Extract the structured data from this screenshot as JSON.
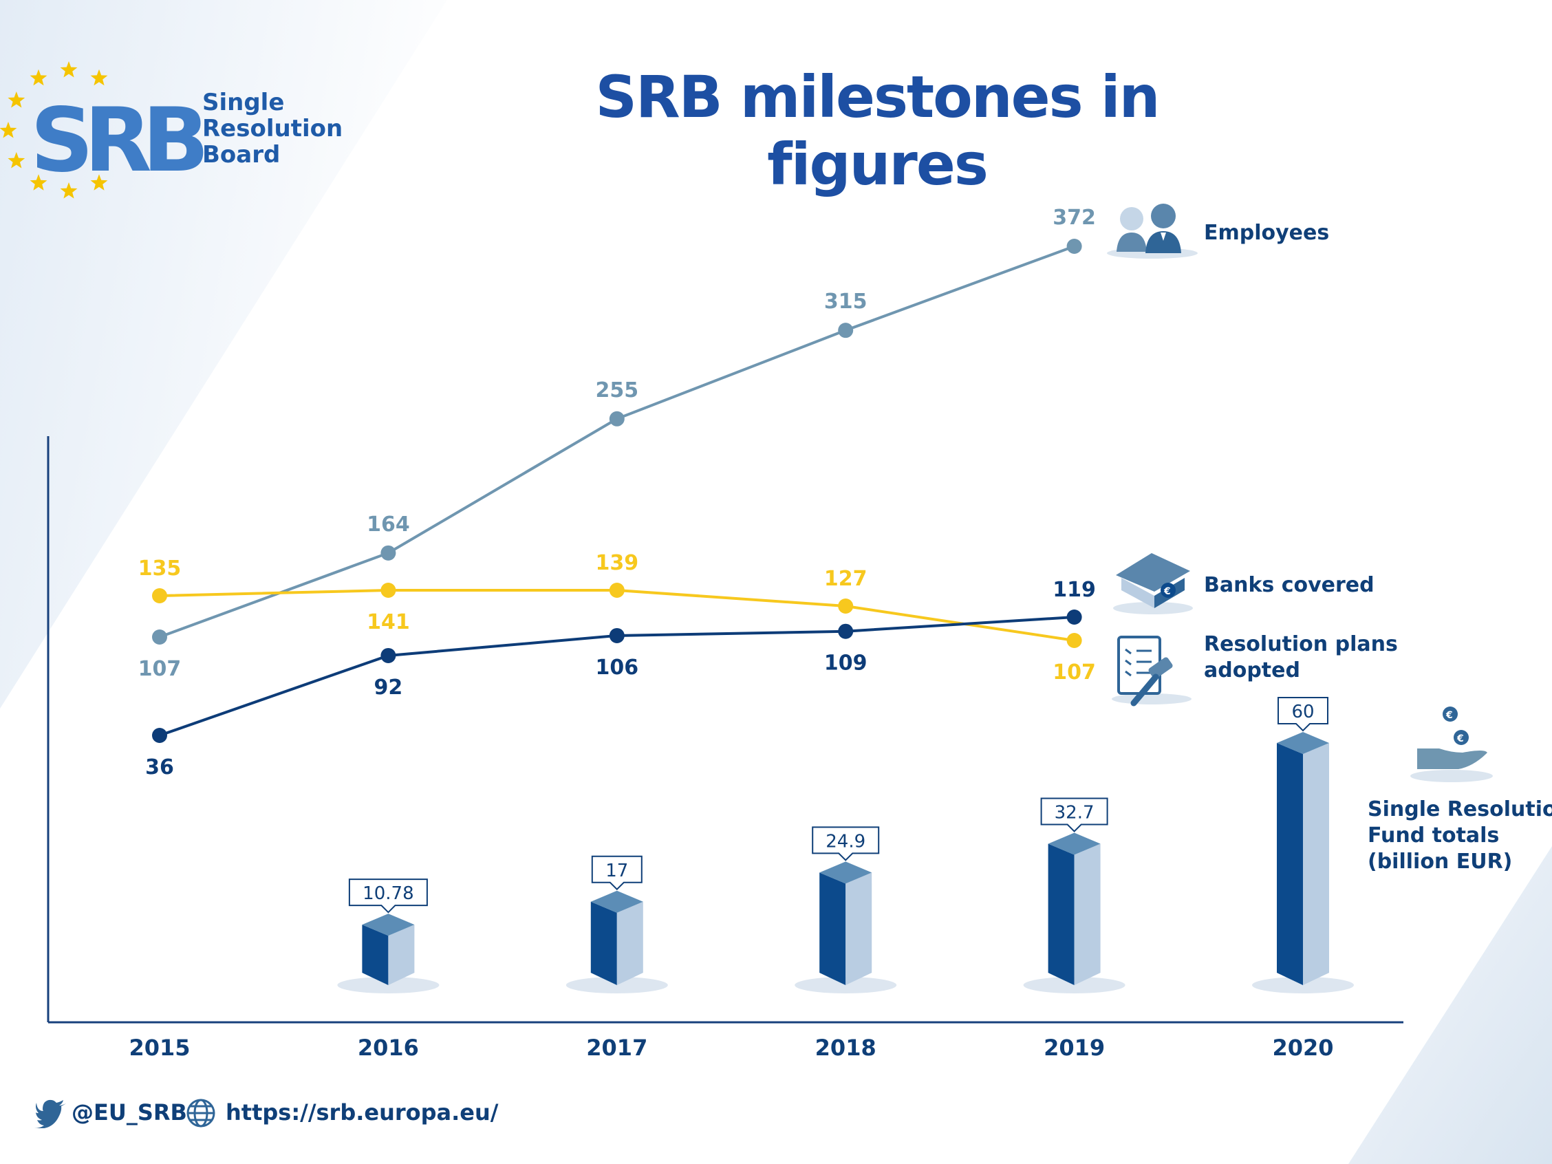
{
  "title": "SRB milestones in figures",
  "logo": {
    "letters": "SRB",
    "line1": "Single",
    "line2": "Resolution",
    "line3": "Board"
  },
  "footer": {
    "twitter": "@EU_SRB",
    "website": "https://srb.europa.eu/"
  },
  "legend": {
    "employees": "Employees",
    "banks_covered": "Banks covered",
    "resolution_line1": "Resolution plans",
    "resolution_line2": "adopted",
    "fund_line1": "Single Resolution",
    "fund_line2": "Fund totals",
    "fund_line3": "(billion EUR)"
  },
  "colors": {
    "employees": "#6f96b0",
    "banks_covered": "#0d3c78",
    "resolution_plans": "#f7c81e",
    "bar_dark": "#0c4a8c",
    "bar_light": "#b9cde2",
    "bar_top": "#5c8db6",
    "axis": "#17407c",
    "title": "#1d4fa3"
  },
  "chart_data": {
    "type": "line+bar",
    "categories": [
      "2015",
      "2016",
      "2017",
      "2018",
      "2019",
      "2020"
    ],
    "series": [
      {
        "name": "Employees",
        "type": "line",
        "values": [
          107,
          164,
          255,
          315,
          372,
          null
        ]
      },
      {
        "name": "Resolution plans adopted",
        "type": "line",
        "values": [
          135,
          141,
          139,
          127,
          107,
          null
        ]
      },
      {
        "name": "Banks covered",
        "type": "line",
        "values": [
          36,
          92,
          106,
          109,
          119,
          null
        ]
      },
      {
        "name": "Single Resolution Fund totals (billion EUR)",
        "type": "bar",
        "values": [
          null,
          10.78,
          17,
          24.9,
          32.7,
          60
        ]
      }
    ]
  }
}
